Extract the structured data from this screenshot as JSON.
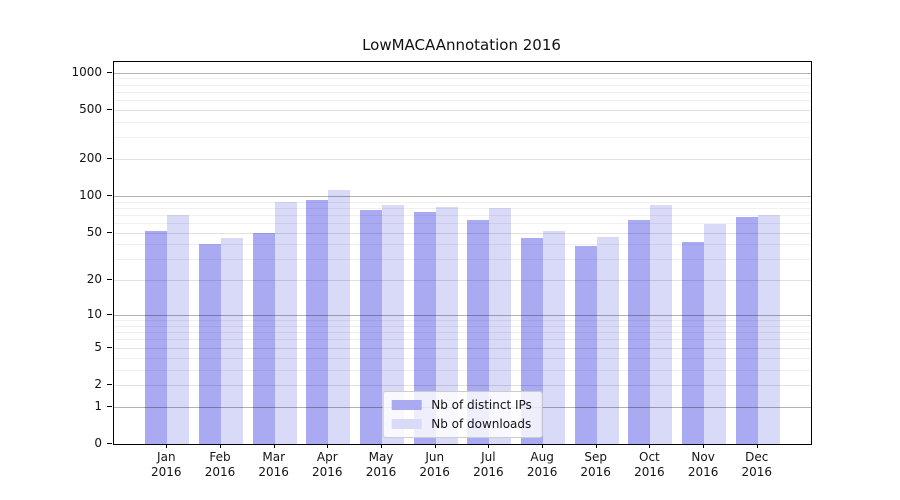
{
  "chart_data": {
    "type": "bar",
    "title": "LowMACAAnnotation 2016",
    "year_label": "2016",
    "categories": [
      "Jan",
      "Feb",
      "Mar",
      "Apr",
      "May",
      "Jun",
      "Jul",
      "Aug",
      "Sep",
      "Oct",
      "Nov",
      "Dec"
    ],
    "series": [
      {
        "name": "Nb of distinct IPs",
        "color": "#aaaaf3",
        "values": [
          52,
          40,
          50,
          93,
          77,
          74,
          64,
          45,
          39,
          64,
          42,
          67
        ]
      },
      {
        "name": "Nb of downloads",
        "color": "#d9d9f8",
        "values": [
          70,
          45,
          90,
          111,
          85,
          82,
          80,
          52,
          46,
          85,
          59,
          70
        ]
      }
    ],
    "y_ticks": [
      0,
      1,
      2,
      5,
      10,
      20,
      50,
      100,
      200,
      500,
      1000
    ],
    "y_minor_gridlines": [
      3,
      4,
      6,
      7,
      8,
      9,
      30,
      40,
      60,
      70,
      80,
      90,
      300,
      400,
      600,
      700,
      800,
      900
    ],
    "y_scale": "log10(1+v)",
    "ylim": [
      0,
      1220
    ],
    "xlabel": "",
    "ylabel": "",
    "grid": true,
    "legend_position": "lower-center",
    "colors": {
      "grid_major": "#b4b4b4",
      "grid_minor": "#eeeeee",
      "axis": "#000000",
      "text": "#141414"
    }
  }
}
